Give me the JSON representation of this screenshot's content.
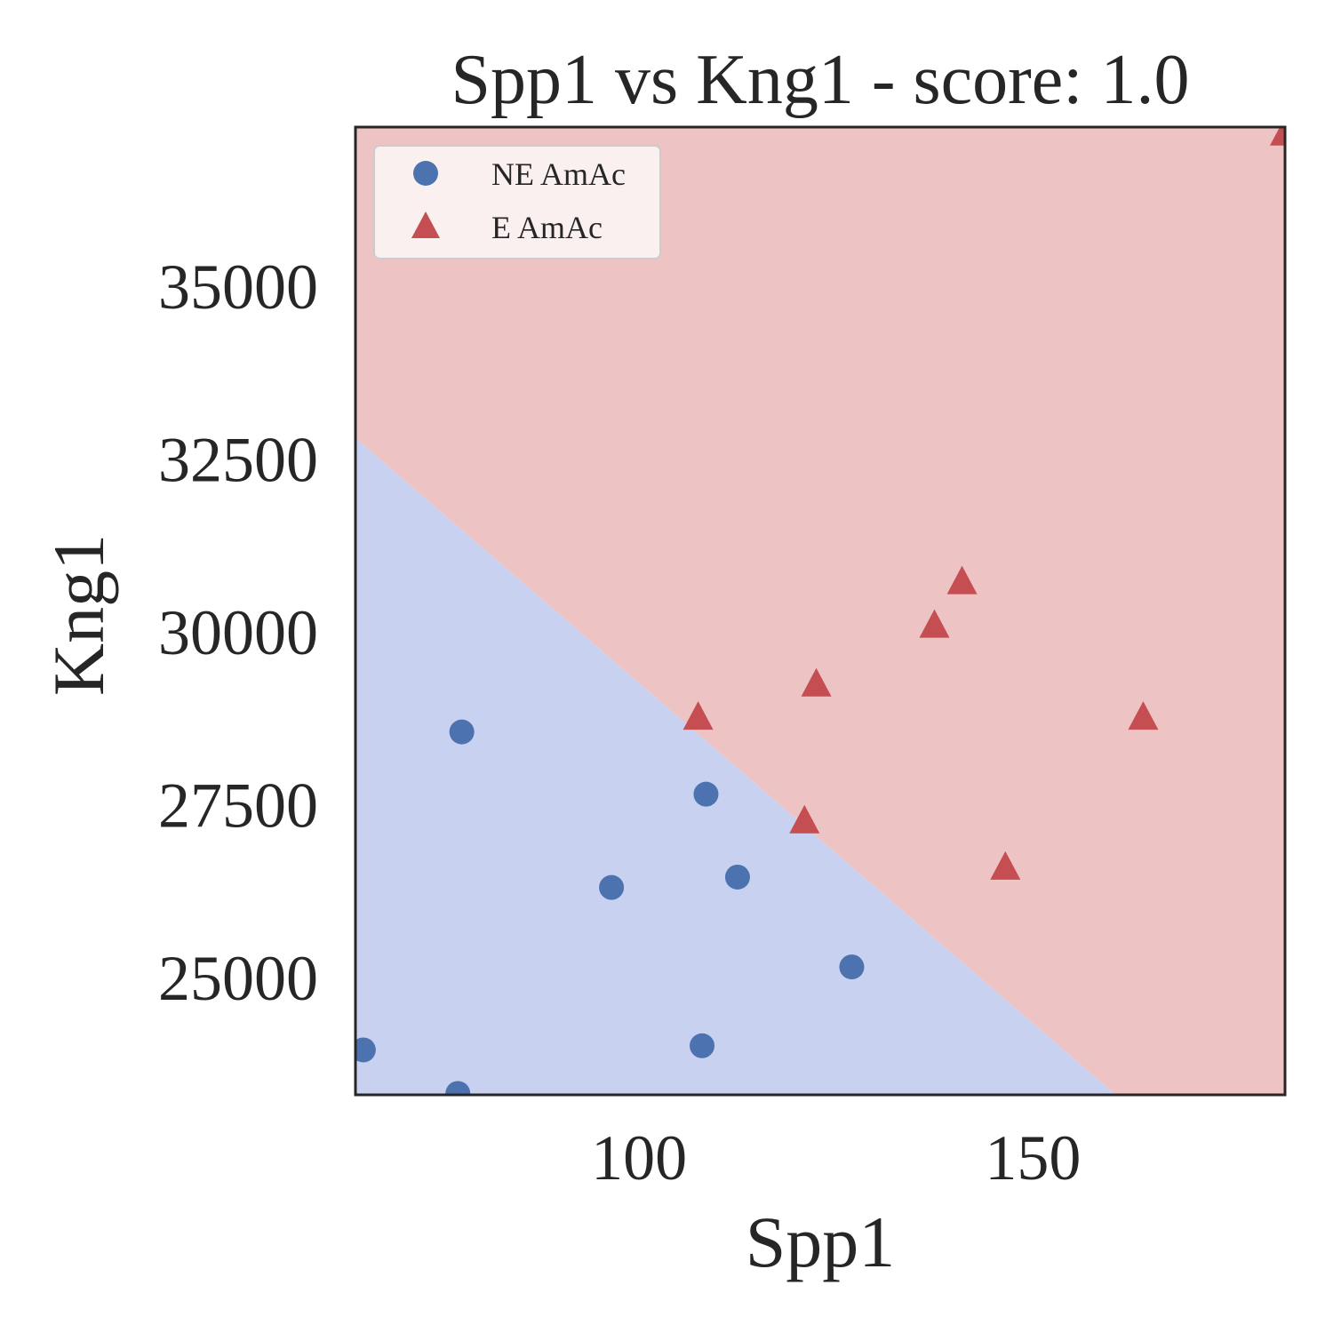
{
  "chart_data": {
    "type": "scatter",
    "title": "Spp1 vs Kng1 - score: 1.0",
    "xlabel": "Spp1",
    "ylabel": "Kng1",
    "xlim": [
      64,
      182
    ],
    "ylim": [
      23300,
      37300
    ],
    "xticks": [
      100,
      150
    ],
    "yticks": [
      25000,
      27500,
      30000,
      32500,
      35000
    ],
    "xtick_labels": [
      "100",
      "150"
    ],
    "ytick_labels": [
      "25000",
      "27500",
      "30000",
      "32500",
      "35000"
    ],
    "grid": false,
    "legend_position": "top-left",
    "decision_regions": {
      "boundary_x": [
        64,
        160.5
      ],
      "boundary_y": [
        32800,
        23300
      ],
      "below_label": "NE AmAc",
      "above_label": "E AmAc",
      "below_color": "#c9d1f1",
      "above_color": "#edc4c3"
    },
    "series": [
      {
        "name": "NE AmAc",
        "marker": "circle",
        "color": "#4c72b0",
        "x": [
          65,
          77.5,
          96.5,
          108.5,
          112.5,
          127,
          108,
          77
        ],
        "y": [
          23950,
          28550,
          26300,
          27650,
          26450,
          25150,
          24010,
          23320
        ]
      },
      {
        "name": "E AmAc",
        "marker": "triangle",
        "color": "#c44e52",
        "x": [
          107.5,
          122.5,
          121,
          137.5,
          141,
          146.5,
          164,
          182
        ],
        "y": [
          28750,
          29230,
          27250,
          30080,
          30710,
          26580,
          28750,
          37200
        ]
      }
    ]
  }
}
